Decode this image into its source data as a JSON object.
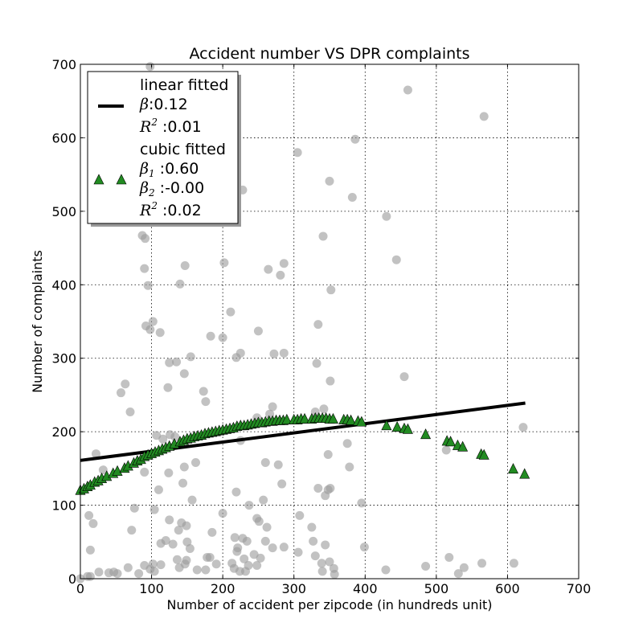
{
  "chart_data": {
    "type": "scatter",
    "title": "Accident number VS DPR complaints",
    "xlabel": "Number of accident per zipcode (in hundreds unit)",
    "ylabel": "Number of complaints",
    "xlim": [
      0,
      700
    ],
    "ylim": [
      0,
      700
    ],
    "xticks": [
      "0",
      "100",
      "200",
      "300",
      "400",
      "500",
      "600",
      "700"
    ],
    "yticks": [
      "0",
      "100",
      "200",
      "300",
      "400",
      "500",
      "600",
      "700"
    ],
    "grid": true,
    "legend_position": "top-left",
    "colors": {
      "scatter": "#999999",
      "linear": "#000000",
      "cubic": "#228b22"
    },
    "legend": {
      "linear": {
        "label": "linear fitted",
        "beta_sym": "β",
        "beta_val": ":0.12",
        "r2_sym": "R",
        "r2_sup": "2",
        "r2_val": " :0.01"
      },
      "cubic": {
        "label": "cubic fitted",
        "b1_sym": "β",
        "b1_sub": "1",
        "b1_val": " :0.60",
        "b2_sym": "β",
        "b2_sub": "2",
        "b2_val": " :-0.00",
        "r2_sym": "R",
        "r2_sup": "2",
        "r2_val": " :0.02"
      }
    },
    "series": [
      {
        "kind": "scatter",
        "points": [
          [
            98,
            697
          ],
          [
            460,
            665
          ],
          [
            567,
            629
          ],
          [
            386,
            598
          ],
          [
            305,
            580
          ],
          [
            350,
            541
          ],
          [
            228,
            529
          ],
          [
            382,
            519
          ],
          [
            430,
            493
          ],
          [
            87,
            467
          ],
          [
            91,
            463
          ],
          [
            341,
            466
          ],
          [
            444,
            434
          ],
          [
            202,
            430
          ],
          [
            286,
            429
          ],
          [
            147,
            426
          ],
          [
            90,
            422
          ],
          [
            264,
            421
          ],
          [
            281,
            413
          ],
          [
            140,
            401
          ],
          [
            95,
            399
          ],
          [
            352,
            393
          ],
          [
            211,
            363
          ],
          [
            102,
            350
          ],
          [
            92,
            344
          ],
          [
            334,
            346
          ],
          [
            98,
            339
          ],
          [
            112,
            335
          ],
          [
            250,
            337
          ],
          [
            200,
            328
          ],
          [
            183,
            330
          ],
          [
            219,
            301
          ],
          [
            225,
            307
          ],
          [
            272,
            306
          ],
          [
            286,
            307
          ],
          [
            155,
            302
          ],
          [
            135,
            295
          ],
          [
            332,
            293
          ],
          [
            125,
            294
          ],
          [
            146,
            279
          ],
          [
            455,
            275
          ],
          [
            351,
            269
          ],
          [
            63,
            265
          ],
          [
            57,
            253
          ],
          [
            173,
            255
          ],
          [
            123,
            260
          ],
          [
            176,
            241
          ],
          [
            342,
            231
          ],
          [
            70,
            227
          ],
          [
            270,
            234
          ],
          [
            330,
            227
          ],
          [
            248,
            219
          ],
          [
            266,
            224
          ],
          [
            22,
            170
          ],
          [
            107,
            195
          ],
          [
            116,
            190
          ],
          [
            126,
            196
          ],
          [
            133,
            193
          ],
          [
            225,
            188
          ],
          [
            622,
            206
          ],
          [
            514,
            175
          ],
          [
            348,
            169
          ],
          [
            375,
            184
          ],
          [
            378,
            152
          ],
          [
            146,
            152
          ],
          [
            162,
            158
          ],
          [
            260,
            158
          ],
          [
            278,
            155
          ],
          [
            32,
            148
          ],
          [
            90,
            145
          ],
          [
            124,
            144
          ],
          [
            144,
            130
          ],
          [
            110,
            121
          ],
          [
            219,
            118
          ],
          [
            283,
            129
          ],
          [
            334,
            123
          ],
          [
            348,
            121
          ],
          [
            351,
            123
          ],
          [
            344,
            113
          ],
          [
            157,
            107
          ],
          [
            257,
            107
          ],
          [
            76,
            96
          ],
          [
            104,
            94
          ],
          [
            237,
            100
          ],
          [
            395,
            103
          ],
          [
            12,
            86
          ],
          [
            18,
            75
          ],
          [
            125,
            80
          ],
          [
            200,
            89
          ],
          [
            308,
            86
          ],
          [
            72,
            66
          ],
          [
            142,
            76
          ],
          [
            185,
            63
          ],
          [
            251,
            78
          ],
          [
            262,
            70
          ],
          [
            325,
            70
          ],
          [
            14,
            39
          ],
          [
            113,
            48
          ],
          [
            120,
            52
          ],
          [
            130,
            47
          ],
          [
            138,
            66
          ],
          [
            149,
            72
          ],
          [
            150,
            50
          ],
          [
            154,
            41
          ],
          [
            217,
            56
          ],
          [
            221,
            42
          ],
          [
            228,
            55
          ],
          [
            234,
            51
          ],
          [
            248,
            82
          ],
          [
            286,
            43
          ],
          [
            270,
            42
          ],
          [
            260,
            51
          ],
          [
            220,
            37
          ],
          [
            244,
            33
          ],
          [
            253,
            28
          ],
          [
            306,
            36
          ],
          [
            327,
            51
          ],
          [
            344,
            46
          ],
          [
            350,
            23
          ],
          [
            399,
            43
          ],
          [
            67,
            15
          ],
          [
            102,
            20
          ],
          [
            113,
            19
          ],
          [
            90,
            18
          ],
          [
            136,
            26
          ],
          [
            149,
            25
          ],
          [
            139,
            15
          ],
          [
            147,
            20
          ],
          [
            178,
            29
          ],
          [
            182,
            29
          ],
          [
            191,
            20
          ],
          [
            164,
            12
          ],
          [
            176,
            12
          ],
          [
            213,
            21
          ],
          [
            232,
            10
          ],
          [
            236,
            18
          ],
          [
            248,
            18
          ],
          [
            230,
            27
          ],
          [
            330,
            31
          ],
          [
            339,
            21
          ],
          [
            356,
            14
          ],
          [
            340,
            10
          ],
          [
            429,
            12
          ],
          [
            485,
            17
          ],
          [
            518,
            29
          ],
          [
            539,
            15
          ],
          [
            531,
            7
          ],
          [
            564,
            21
          ],
          [
            609,
            21
          ],
          [
            0,
            0
          ],
          [
            10,
            3
          ],
          [
            14,
            3
          ],
          [
            26,
            9
          ],
          [
            40,
            8
          ],
          [
            47,
            9
          ],
          [
            52,
            7
          ],
          [
            82,
            7
          ],
          [
            98,
            13
          ],
          [
            104,
            10
          ],
          [
            216,
            14
          ],
          [
            224,
            10
          ],
          [
            357,
            6
          ]
        ]
      },
      {
        "kind": "line",
        "name": "linear fitted",
        "x": [
          0,
          625
        ],
        "y": [
          161,
          239
        ]
      },
      {
        "kind": "triangles",
        "name": "cubic fitted",
        "points": [
          [
            0,
            120
          ],
          [
            5,
            122
          ],
          [
            10,
            125
          ],
          [
            14,
            127
          ],
          [
            20,
            131
          ],
          [
            25,
            133
          ],
          [
            30,
            136
          ],
          [
            37,
            139
          ],
          [
            46,
            143
          ],
          [
            52,
            146
          ],
          [
            62,
            150
          ],
          [
            67,
            153
          ],
          [
            75,
            157
          ],
          [
            80,
            160
          ],
          [
            85,
            162
          ],
          [
            90,
            166
          ],
          [
            95,
            168
          ],
          [
            100,
            170
          ],
          [
            105,
            172
          ],
          [
            110,
            174
          ],
          [
            115,
            176
          ],
          [
            120,
            178
          ],
          [
            125,
            180
          ],
          [
            132,
            183
          ],
          [
            140,
            186
          ],
          [
            145,
            188
          ],
          [
            150,
            190
          ],
          [
            155,
            191
          ],
          [
            160,
            193
          ],
          [
            165,
            194
          ],
          [
            170,
            195
          ],
          [
            175,
            197
          ],
          [
            180,
            198
          ],
          [
            185,
            199
          ],
          [
            190,
            200
          ],
          [
            195,
            201
          ],
          [
            200,
            202
          ],
          [
            205,
            203
          ],
          [
            210,
            204
          ],
          [
            215,
            205
          ],
          [
            220,
            207
          ],
          [
            225,
            208
          ],
          [
            230,
            208
          ],
          [
            235,
            209
          ],
          [
            240,
            210
          ],
          [
            245,
            211
          ],
          [
            250,
            212
          ],
          [
            255,
            212
          ],
          [
            260,
            213
          ],
          [
            265,
            214
          ],
          [
            270,
            214
          ],
          [
            275,
            215
          ],
          [
            280,
            215
          ],
          [
            285,
            215
          ],
          [
            290,
            216
          ],
          [
            300,
            216
          ],
          [
            305,
            216
          ],
          [
            310,
            217
          ],
          [
            315,
            217
          ],
          [
            325,
            217
          ],
          [
            330,
            218
          ],
          [
            335,
            218
          ],
          [
            340,
            218
          ],
          [
            345,
            218
          ],
          [
            350,
            217
          ],
          [
            355,
            217
          ],
          [
            370,
            216
          ],
          [
            375,
            216
          ],
          [
            380,
            215
          ],
          [
            390,
            214
          ],
          [
            395,
            213
          ],
          [
            430,
            208
          ],
          [
            445,
            206
          ],
          [
            455,
            204
          ],
          [
            460,
            203
          ],
          [
            485,
            196
          ],
          [
            515,
            187
          ],
          [
            520,
            186
          ],
          [
            530,
            181
          ],
          [
            537,
            179
          ],
          [
            563,
            169
          ],
          [
            567,
            168
          ],
          [
            608,
            149
          ],
          [
            624,
            142
          ]
        ]
      }
    ]
  }
}
